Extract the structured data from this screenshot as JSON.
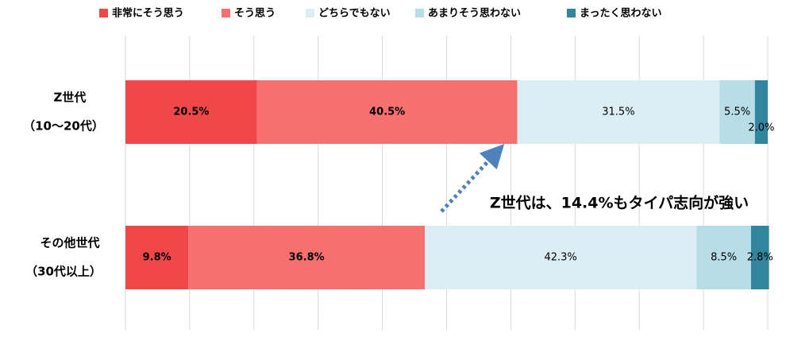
{
  "chart_data": {
    "type": "stacked-bar-horizontal",
    "categories": [
      [
        "Z世代",
        "（10～20代）"
      ],
      [
        "その他世代",
        "（30代以上）"
      ]
    ],
    "series": [
      {
        "name": "非常にそう思う",
        "color": "#f04848",
        "values": [
          20.5,
          9.8
        ],
        "value_labels": [
          "20.5%",
          "9.8%"
        ]
      },
      {
        "name": "そう思う",
        "color": "#f77070",
        "values": [
          40.5,
          36.8
        ],
        "value_labels": [
          "40.5%",
          "36.8%"
        ]
      },
      {
        "name": "どちらでもない",
        "color": "#daeef3",
        "values": [
          31.5,
          42.3
        ],
        "value_labels": [
          "31.5%",
          "42.3%"
        ]
      },
      {
        "name": "あまりそう思わない",
        "color": "#b7dde8",
        "values": [
          5.5,
          8.5
        ],
        "value_labels": [
          "5.5%",
          "8.5%"
        ]
      },
      {
        "name": "まったく思わない",
        "color": "#31859c",
        "values": [
          2.0,
          2.8
        ],
        "value_labels": [
          "2.0%",
          "2.8%"
        ]
      }
    ],
    "xlim": [
      0,
      100
    ],
    "xticks": [
      0,
      10,
      20,
      30,
      40,
      50,
      60,
      70,
      80,
      90,
      100
    ],
    "grid": true,
    "annotation": "Z世代は、14.4%もタイパ志向が強い"
  }
}
